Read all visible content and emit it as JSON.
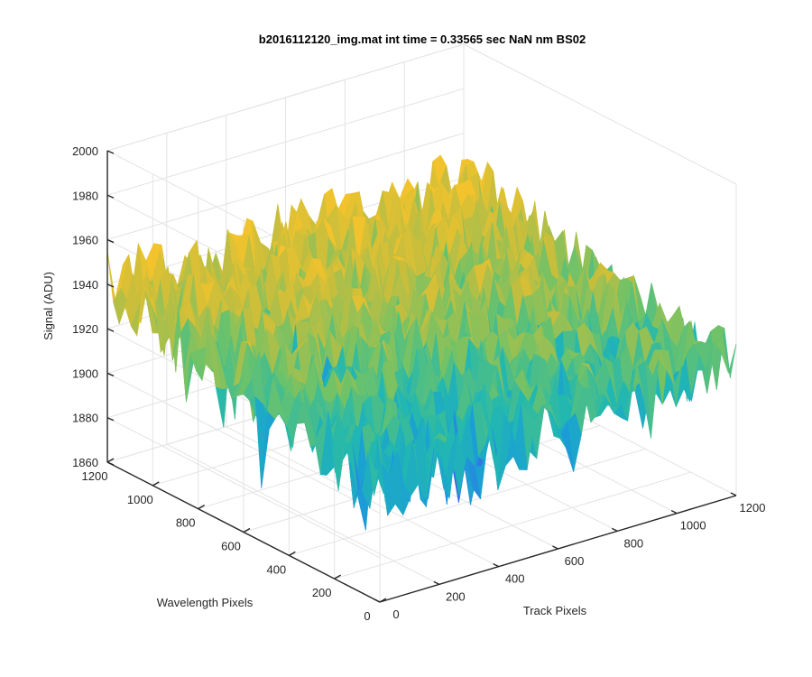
{
  "chart_data": {
    "type": "surface",
    "title": "b2016112120_img.mat int time = 0.33565 sec   NaN nm BS02",
    "xlabel": "Track Pixels",
    "ylabel": "Wavelength Pixels",
    "zlabel": "Signal (ADU)",
    "xlim": [
      0,
      1200
    ],
    "ylim": [
      0,
      1200
    ],
    "zlim": [
      1860,
      2000
    ],
    "xticks": [
      "0",
      "200",
      "400",
      "600",
      "800",
      "1000",
      "1200"
    ],
    "yticks": [
      "0",
      "200",
      "400",
      "600",
      "800",
      "1000",
      "1200"
    ],
    "zticks": [
      "1860",
      "1880",
      "1900",
      "1920",
      "1940",
      "1960",
      "1980",
      "2000"
    ],
    "grid": true,
    "colormap": [
      "#3e63f0",
      "#1a9fd6",
      "#22b8b0",
      "#6cc26a",
      "#c8be3c",
      "#f2c32c"
    ],
    "surface_summary": {
      "x_range": [
        0,
        1200
      ],
      "y_range": [
        0,
        1200
      ],
      "mean_signal_low_y_half": 1915,
      "mean_signal_high_y_half": 1932,
      "corner_signal_x0_y1200": 1940,
      "corner_signal_x1200_y1200": 1940,
      "corner_signal_x0_y0": 1910,
      "corner_signal_x1200_y0": 1920,
      "noise_spread_adu": 30
    }
  }
}
